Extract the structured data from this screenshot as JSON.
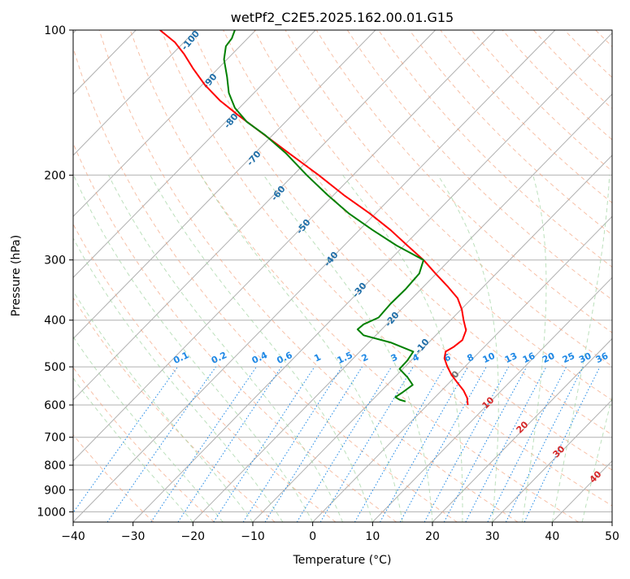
{
  "chart_data": {
    "type": "skew-t",
    "title": "wetPf2_C2E5.2025.162.00.01.G15",
    "xlabel": "Temperature (°C)",
    "ylabel": "Pressure (hPa)",
    "xlim": [
      -40,
      50
    ],
    "ylim": [
      1050,
      100
    ],
    "y_scale": "log",
    "x_ticks": [
      "−40",
      "−30",
      "−20",
      "−10",
      "0",
      "10",
      "20",
      "30",
      "40",
      "50"
    ],
    "x_tick_values": [
      -40,
      -30,
      -20,
      -10,
      0,
      10,
      20,
      30,
      40,
      50
    ],
    "y_ticks": [
      "100",
      "200",
      "300",
      "400",
      "500",
      "600",
      "700",
      "800",
      "900",
      "1000"
    ],
    "y_tick_values": [
      100,
      200,
      300,
      400,
      500,
      600,
      700,
      800,
      900,
      1000
    ],
    "grid": true,
    "isotherms_skewed": true,
    "dry_adiabats": {
      "color": "#f4a582",
      "style": "dashed"
    },
    "moist_adiabats": {
      "color": "#9fd39f",
      "style": "dashed"
    },
    "mixing_ratio_lines": {
      "color": "#1e88e5",
      "style": "dotted"
    },
    "potential_temperature_labels": [
      "-100",
      "-90",
      "-80",
      "-70",
      "-60",
      "-50",
      "-40",
      "-30",
      "-20",
      "-10",
      "0"
    ],
    "mixing_ratio_labels": [
      "0.1",
      "0.2",
      "0.4",
      "0.6",
      "1",
      "1.5",
      "2",
      "3",
      "4",
      "6",
      "8",
      "10",
      "13",
      "16",
      "20",
      "25",
      "30",
      "36"
    ],
    "red_isotherm_labels": [
      "10",
      "20",
      "30",
      "40"
    ],
    "series": [
      {
        "color": "#ff0000",
        "points": [
          {
            "p": 600,
            "t": 25.9
          },
          {
            "p": 580,
            "t": 25.8
          },
          {
            "p": 560,
            "t": 25.2
          },
          {
            "p": 540,
            "t": 24.2
          },
          {
            "p": 520,
            "t": 23.2
          },
          {
            "p": 500,
            "t": 22.5
          },
          {
            "p": 480,
            "t": 22.0
          },
          {
            "p": 465,
            "t": 22.2
          },
          {
            "p": 455,
            "t": 23.5
          },
          {
            "p": 440,
            "t": 25.0
          },
          {
            "p": 420,
            "t": 25.6
          },
          {
            "p": 400,
            "t": 25.2
          },
          {
            "p": 380,
            "t": 24.9
          },
          {
            "p": 360,
            "t": 24.2
          },
          {
            "p": 340,
            "t": 22.5
          },
          {
            "p": 320,
            "t": 20.5
          },
          {
            "p": 300,
            "t": 18.5
          },
          {
            "p": 280,
            "t": 15.8
          },
          {
            "p": 260,
            "t": 13.0
          },
          {
            "p": 240,
            "t": 9.5
          },
          {
            "p": 220,
            "t": 5.2
          },
          {
            "p": 200,
            "t": 1.0
          },
          {
            "p": 180,
            "t": -4.0
          },
          {
            "p": 160,
            "t": -9.5
          },
          {
            "p": 150,
            "t": -12.5
          },
          {
            "p": 140,
            "t": -15.5
          },
          {
            "p": 130,
            "t": -18.0
          },
          {
            "p": 120,
            "t": -20.0
          },
          {
            "p": 112,
            "t": -21.5
          },
          {
            "p": 106,
            "t": -23.0
          },
          {
            "p": 100,
            "t": -25.5
          }
        ]
      },
      {
        "color": "#008000",
        "points": [
          {
            "p": 590,
            "t": 15.5
          },
          {
            "p": 585,
            "t": 14.5
          },
          {
            "p": 578,
            "t": 13.8
          },
          {
            "p": 565,
            "t": 15.0
          },
          {
            "p": 545,
            "t": 16.7
          },
          {
            "p": 525,
            "t": 15.8
          },
          {
            "p": 505,
            "t": 14.5
          },
          {
            "p": 485,
            "t": 15.8
          },
          {
            "p": 465,
            "t": 16.8
          },
          {
            "p": 445,
            "t": 13.0
          },
          {
            "p": 430,
            "t": 8.5
          },
          {
            "p": 418,
            "t": 7.5
          },
          {
            "p": 408,
            "t": 8.5
          },
          {
            "p": 395,
            "t": 11.0
          },
          {
            "p": 370,
            "t": 13.0
          },
          {
            "p": 345,
            "t": 15.5
          },
          {
            "p": 320,
            "t": 17.8
          },
          {
            "p": 300,
            "t": 18.5
          },
          {
            "p": 280,
            "t": 14.0
          },
          {
            "p": 260,
            "t": 10.0
          },
          {
            "p": 240,
            "t": 6.0
          },
          {
            "p": 220,
            "t": 2.5
          },
          {
            "p": 200,
            "t": -1.0
          },
          {
            "p": 180,
            "t": -4.5
          },
          {
            "p": 165,
            "t": -8.0
          },
          {
            "p": 155,
            "t": -11.0
          },
          {
            "p": 145,
            "t": -13.0
          },
          {
            "p": 135,
            "t": -14.0
          },
          {
            "p": 125,
            "t": -14.3
          },
          {
            "p": 115,
            "t": -14.8
          },
          {
            "p": 108,
            "t": -14.5
          },
          {
            "p": 104,
            "t": -13.5
          },
          {
            "p": 100,
            "t": -13.0
          }
        ]
      }
    ]
  }
}
